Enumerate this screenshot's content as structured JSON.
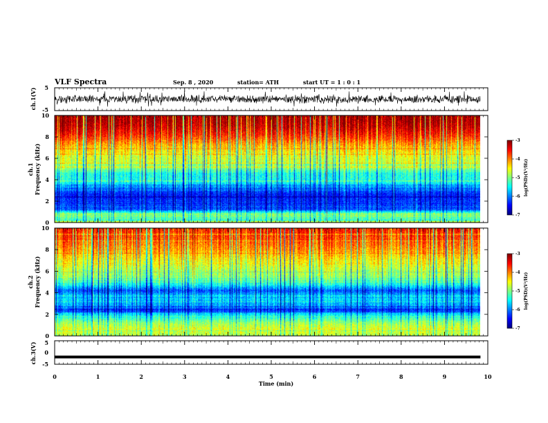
{
  "header": {
    "title": "VLF Spectra",
    "date": "Sep. 8 , 2020",
    "station": "station= ATH",
    "start_time": "start UT = 1 : 0 : 1"
  },
  "chart_data": [
    {
      "type": "line",
      "panel": "ch1-waveform",
      "ylabel": "ch.1(V)",
      "ylim": [
        -5,
        5
      ],
      "yticks": [
        "5",
        "-5"
      ],
      "xlim": [
        0,
        10
      ],
      "x_extent": [
        0,
        9.83
      ],
      "y_range_shown": [
        -3.5,
        3.5
      ],
      "trace_color": "#000000"
    },
    {
      "type": "heatmap",
      "panel": "ch1-spectrogram",
      "ylabel": "ch.1 Frequency (kHz)",
      "ylim": [
        0,
        10
      ],
      "yticks": [
        "0",
        "2",
        "4",
        "6",
        "8",
        "10"
      ],
      "xlim": [
        0,
        10
      ],
      "x_extent": [
        0,
        9.83
      ],
      "value_profile": [
        [
          0,
          -4.6
        ],
        [
          0.2,
          -5.2
        ],
        [
          0.8,
          -5.0
        ],
        [
          1.2,
          -6.2
        ],
        [
          2.0,
          -6.3
        ],
        [
          2.6,
          -6.4
        ],
        [
          3.2,
          -6.0
        ],
        [
          3.8,
          -5.4
        ],
        [
          4.6,
          -5.4
        ],
        [
          5.2,
          -4.8
        ],
        [
          6.2,
          -4.6
        ],
        [
          7.2,
          -4.2
        ],
        [
          8.2,
          -3.6
        ],
        [
          9.2,
          -3.2
        ],
        [
          10,
          -3.1
        ]
      ],
      "colorbar": {
        "label": "log(PSD)(V²/Hz)",
        "range": [
          -7,
          -3
        ],
        "ticks": [
          "-3",
          "-4",
          "-5",
          "-6",
          "-7"
        ],
        "colormap": "jet"
      }
    },
    {
      "type": "heatmap",
      "panel": "ch2-spectrogram",
      "ylabel": "ch.2 Frequency (kHz)",
      "ylim": [
        0,
        10
      ],
      "yticks": [
        "0",
        "2",
        "4",
        "6",
        "8",
        "10"
      ],
      "xlim": [
        0,
        10
      ],
      "x_extent": [
        0,
        9.83
      ],
      "value_profile": [
        [
          0,
          -4.8
        ],
        [
          0.6,
          -4.6
        ],
        [
          1.2,
          -4.9
        ],
        [
          2.0,
          -5.6
        ],
        [
          2.4,
          -6.4
        ],
        [
          3.0,
          -5.8
        ],
        [
          3.6,
          -5.6
        ],
        [
          4.2,
          -6.2
        ],
        [
          5.0,
          -5.1
        ],
        [
          6.0,
          -4.8
        ],
        [
          7.0,
          -4.5
        ],
        [
          8.0,
          -4.1
        ],
        [
          9.0,
          -3.8
        ],
        [
          10,
          -3.6
        ]
      ],
      "colorbar": {
        "label": "log(PSD)(V²/Hz)",
        "range": [
          -7,
          -3
        ],
        "ticks": [
          "-3",
          "-4",
          "-5",
          "-6",
          "-7"
        ],
        "colormap": "jet"
      }
    },
    {
      "type": "line",
      "panel": "ch3-waveform",
      "ylabel": "ch.3(V)",
      "ylim": [
        -5,
        5
      ],
      "yticks": [
        "5",
        "0",
        "-5"
      ],
      "xlim": [
        0,
        10
      ],
      "x_extent": [
        0,
        9.83
      ],
      "baseline_value": -1.9,
      "trace_color": "#000000"
    }
  ],
  "x_axis": {
    "label": "Time (min)",
    "ticks": [
      "0",
      "1",
      "2",
      "3",
      "4",
      "5",
      "6",
      "7",
      "8",
      "9",
      "10"
    ]
  }
}
